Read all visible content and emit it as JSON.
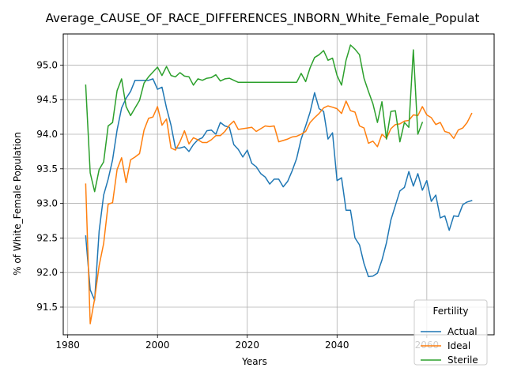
{
  "chart_data": {
    "type": "line",
    "title": "Average_CAUSE_OF_RACE_DIFFERENCES_INBORN_White_Female_Populat",
    "xlabel": "Years",
    "ylabel": "% of White_Female Population",
    "xlim": [
      1979,
      2075
    ],
    "ylim": [
      91.1,
      95.45
    ],
    "xticks": [
      1980,
      2000,
      2020,
      2040,
      2060
    ],
    "yticks": [
      91.5,
      92.0,
      92.5,
      93.0,
      93.5,
      94.0,
      94.5,
      95.0
    ],
    "grid": true,
    "legend": {
      "title": "Fertility",
      "position": "lower-right"
    },
    "series": [
      {
        "name": "Actual",
        "color": "#1f77b4",
        "x": [
          1984,
          1985,
          1986,
          1987,
          1988,
          1989,
          1990,
          1991,
          1992,
          1993,
          1994,
          1995,
          1996,
          1997,
          1998,
          1999,
          2000,
          2001,
          2002,
          2003,
          2004,
          2005,
          2006,
          2007,
          2008,
          2009,
          2010,
          2011,
          2012,
          2013,
          2014,
          2015,
          2016,
          2017,
          2018,
          2019,
          2020,
          2021,
          2022,
          2023,
          2024,
          2025,
          2026,
          2027,
          2028,
          2029,
          2030,
          2031,
          2032,
          2033,
          2034,
          2035,
          2036,
          2037,
          2038,
          2039,
          2040,
          2041,
          2042,
          2043,
          2044,
          2045,
          2046,
          2047,
          2048,
          2049,
          2050,
          2051,
          2052,
          2053,
          2054,
          2055,
          2056,
          2057,
          2058,
          2059,
          2060,
          2061,
          2062,
          2063,
          2064,
          2065,
          2066,
          2067,
          2068,
          2069,
          2070
        ],
        "y": [
          92.53,
          91.75,
          91.6,
          92.6,
          93.12,
          93.35,
          93.63,
          94.06,
          94.38,
          94.52,
          94.62,
          94.78,
          94.78,
          94.78,
          94.78,
          94.8,
          94.65,
          94.68,
          94.38,
          94.13,
          93.8,
          93.8,
          93.82,
          93.75,
          93.85,
          93.92,
          93.95,
          94.05,
          94.06,
          94.0,
          94.17,
          94.12,
          94.1,
          93.85,
          93.78,
          93.67,
          93.77,
          93.58,
          93.53,
          93.43,
          93.38,
          93.28,
          93.35,
          93.35,
          93.24,
          93.32,
          93.47,
          93.65,
          93.93,
          94.12,
          94.32,
          94.6,
          94.37,
          94.33,
          93.93,
          94.02,
          93.33,
          93.37,
          92.9,
          92.9,
          92.5,
          92.4,
          92.13,
          91.94,
          91.95,
          91.99,
          92.18,
          92.43,
          92.76,
          92.97,
          93.18,
          93.23,
          93.46,
          93.25,
          93.43,
          93.19,
          93.33,
          93.03,
          93.12,
          92.79,
          92.82,
          92.61,
          92.82,
          92.81,
          92.98,
          93.02,
          93.04
        ]
      },
      {
        "name": "Ideal",
        "color": "#ff7f0e",
        "x": [
          1984,
          1985,
          1986,
          1987,
          1988,
          1989,
          1990,
          1991,
          1992,
          1993,
          1994,
          1995,
          1996,
          1997,
          1998,
          1999,
          2000,
          2001,
          2002,
          2003,
          2004,
          2005,
          2006,
          2007,
          2008,
          2009,
          2010,
          2011,
          2012,
          2013,
          2014,
          2015,
          2016,
          2017,
          2018,
          2019,
          2020,
          2021,
          2022,
          2023,
          2024,
          2025,
          2026,
          2027,
          2028,
          2029,
          2030,
          2031,
          2032,
          2033,
          2034,
          2035,
          2036,
          2037,
          2038,
          2039,
          2040,
          2041,
          2042,
          2043,
          2044,
          2045,
          2046,
          2047,
          2048,
          2049,
          2050,
          2051,
          2052,
          2053,
          2054,
          2055,
          2056,
          2057,
          2058,
          2059,
          2060,
          2061,
          2062,
          2063,
          2064,
          2065,
          2066,
          2067,
          2068,
          2069,
          2070
        ],
        "y": [
          93.28,
          91.26,
          91.62,
          92.1,
          92.42,
          92.99,
          93.01,
          93.49,
          93.66,
          93.3,
          93.63,
          93.67,
          93.72,
          94.06,
          94.23,
          94.25,
          94.4,
          94.13,
          94.22,
          93.8,
          93.77,
          93.89,
          94.05,
          93.86,
          93.95,
          93.92,
          93.88,
          93.88,
          93.92,
          93.98,
          93.98,
          94.04,
          94.13,
          94.19,
          94.07,
          94.08,
          94.09,
          94.1,
          94.04,
          94.08,
          94.12,
          94.11,
          94.12,
          93.89,
          93.91,
          93.93,
          93.96,
          93.97,
          94.0,
          94.04,
          94.17,
          94.24,
          94.3,
          94.38,
          94.41,
          94.39,
          94.37,
          94.3,
          94.48,
          94.34,
          94.32,
          94.12,
          94.09,
          93.87,
          93.9,
          93.82,
          94.0,
          93.94,
          94.08,
          94.14,
          94.15,
          94.19,
          94.2,
          94.28,
          94.27,
          94.4,
          94.28,
          94.24,
          94.14,
          94.17,
          94.04,
          94.02,
          93.94,
          94.06,
          94.09,
          94.17,
          94.3
        ]
      },
      {
        "name": "Sterile",
        "color": "#2ca02c",
        "x": [
          1984,
          1985,
          1986,
          1987,
          1988,
          1989,
          1990,
          1991,
          1992,
          1993,
          1994,
          1995,
          1996,
          1997,
          1998,
          1999,
          2000,
          2001,
          2002,
          2003,
          2004,
          2005,
          2006,
          2007,
          2008,
          2009,
          2010,
          2011,
          2012,
          2013,
          2014,
          2015,
          2016,
          2017,
          2018,
          2019,
          2020,
          2021,
          2022,
          2023,
          2024,
          2025,
          2026,
          2027,
          2028,
          2029,
          2030,
          2031,
          2032,
          2033,
          2034,
          2035,
          2036,
          2037,
          2038,
          2039,
          2040,
          2041,
          2042,
          2043,
          2044,
          2045,
          2046,
          2047,
          2048,
          2049,
          2050,
          2051,
          2052,
          2053,
          2054,
          2055,
          2056,
          2057,
          2058,
          2059
        ],
        "y": [
          94.71,
          93.44,
          93.17,
          93.49,
          93.6,
          94.12,
          94.17,
          94.63,
          94.8,
          94.4,
          94.27,
          94.38,
          94.49,
          94.74,
          94.83,
          94.9,
          94.97,
          94.85,
          94.98,
          94.85,
          94.83,
          94.89,
          94.84,
          94.83,
          94.71,
          94.8,
          94.78,
          94.81,
          94.82,
          94.86,
          94.77,
          94.8,
          94.81,
          94.78,
          94.75,
          94.75,
          94.75,
          94.75,
          94.75,
          94.75,
          94.75,
          94.75,
          94.75,
          94.75,
          94.75,
          94.75,
          94.75,
          94.75,
          94.88,
          94.76,
          94.96,
          95.11,
          95.15,
          95.21,
          95.07,
          95.1,
          94.85,
          94.71,
          95.07,
          95.29,
          95.23,
          95.15,
          94.81,
          94.62,
          94.44,
          94.17,
          94.47,
          93.93,
          94.33,
          94.34,
          93.89,
          94.17,
          94.1,
          95.22,
          94.0,
          94.17
        ]
      }
    ]
  }
}
